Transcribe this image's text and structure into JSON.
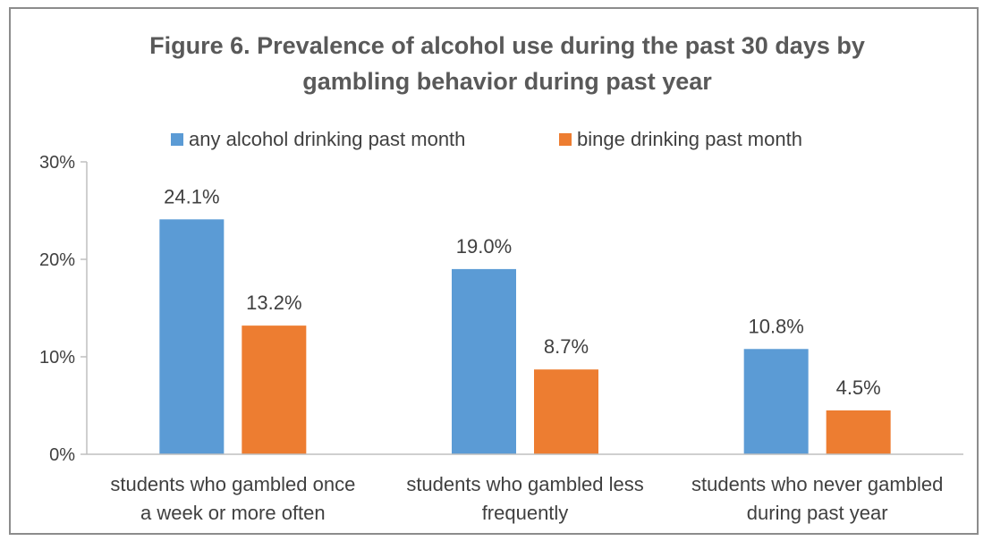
{
  "chart_data": {
    "type": "bar",
    "title": "Figure 6. Prevalence of alcohol use during the past 30  days by gambling behavior during past year",
    "title_lines": [
      "Figure 6. Prevalence of alcohol use during the past 30  days by",
      "gambling behavior during past year"
    ],
    "categories": [
      "students who gambled once a week or more often",
      "students who gambled less frequently",
      "students who never gambled during past year"
    ],
    "category_lines": [
      [
        "students who gambled once",
        "a week or more often"
      ],
      [
        "students who gambled less",
        "frequently"
      ],
      [
        "students who never gambled",
        "during past year"
      ]
    ],
    "series": [
      {
        "name": "any alcohol drinking past month",
        "color": "#5b9bd5",
        "values": [
          24.1,
          19.0,
          10.8
        ],
        "labels": [
          "24.1%",
          "19.0%",
          "10.8%"
        ]
      },
      {
        "name": "binge drinking past month",
        "color": "#ed7d31",
        "values": [
          13.2,
          8.7,
          4.5
        ],
        "labels": [
          "13.2%",
          "8.7%",
          "4.5%"
        ]
      }
    ],
    "yticks": [
      "0%",
      "10%",
      "20%",
      "30%"
    ],
    "ylim": [
      0,
      30
    ],
    "xlabel": "",
    "ylabel": "",
    "grid": false,
    "legend": "top",
    "axis_color": "#bfbfbf"
  }
}
